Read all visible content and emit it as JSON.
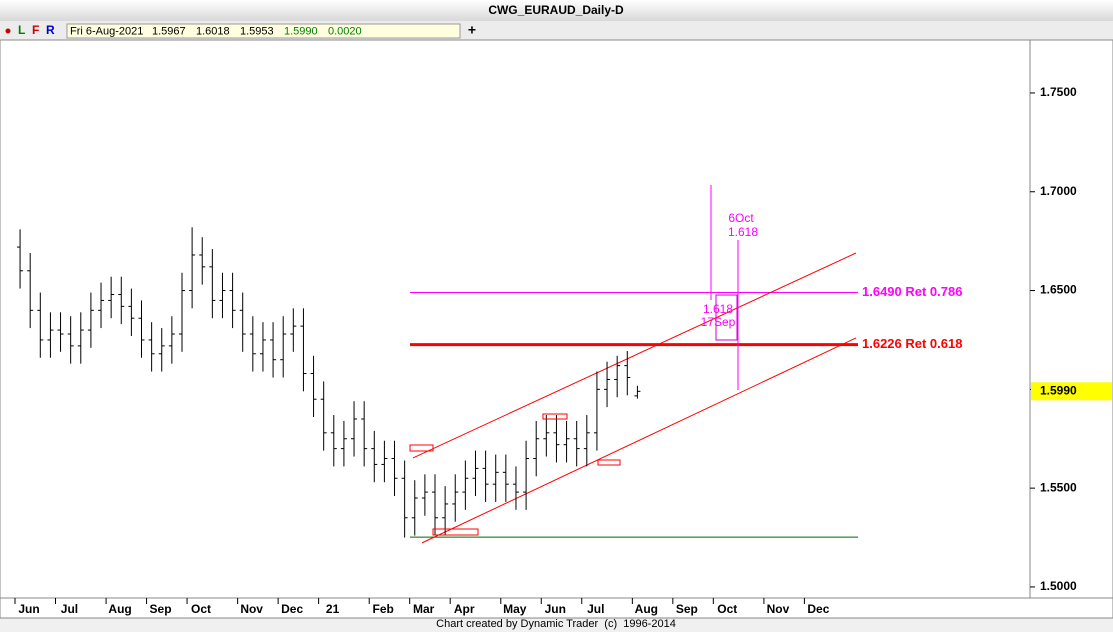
{
  "chart_data": {
    "type": "ohlc",
    "title": "CWG_EURAUD_Daily-D",
    "toolbar": {
      "buttons": [
        "L",
        "F",
        "R"
      ],
      "date": "Fri 6-Aug-2021",
      "open": "1.5967",
      "high": "1.6018",
      "low": "1.5953",
      "close": "1.5990",
      "change": "0.0020",
      "add": "+"
    },
    "footer": "Chart created by Dynamic Trader  (c)  1996-2014",
    "categories": [
      "Jun",
      null,
      null,
      null,
      "Jul",
      null,
      null,
      null,
      null,
      "Aug",
      null,
      null,
      null,
      "Sep",
      null,
      null,
      null,
      "Oct",
      null,
      null,
      null,
      null,
      "Nov",
      null,
      null,
      null,
      "Dec",
      null,
      null,
      null,
      "21",
      null,
      null,
      null,
      null,
      "Feb",
      null,
      null,
      null,
      "Mar",
      null,
      null,
      null,
      "Apr",
      null,
      null,
      null,
      null,
      "May",
      null,
      null,
      null,
      "Jun",
      null,
      null,
      null,
      "Jul",
      null,
      null,
      null,
      null,
      "Aug",
      null,
      null,
      null,
      "Sep",
      null,
      null,
      null,
      "Oct",
      null,
      null,
      null,
      null,
      "Nov",
      null,
      null,
      null,
      "Dec",
      null,
      null,
      null,
      null
    ],
    "color": "#000000",
    "open": [
      1.672,
      1.66,
      1.64,
      1.625,
      1.63,
      1.628,
      1.622,
      1.63,
      1.64,
      1.645,
      1.648,
      1.642,
      1.636,
      1.625,
      1.618,
      1.622,
      1.628,
      1.65,
      1.668,
      1.662,
      1.645,
      1.65,
      1.64,
      1.628,
      1.618,
      1.625,
      1.615,
      1.628,
      1.632,
      1.608,
      1.595,
      1.578,
      1.57,
      1.575,
      1.585,
      1.57,
      1.562,
      1.565,
      1.555,
      1.535,
      1.545,
      1.548,
      1.535,
      1.542,
      1.548,
      1.555,
      1.56,
      1.552,
      1.558,
      1.552,
      1.548,
      1.565,
      1.575,
      1.578,
      1.572,
      1.575,
      1.57,
      1.578,
      1.6,
      1.605,
      1.612,
      1.5967,
      null,
      null,
      null,
      null,
      null,
      null,
      null,
      null,
      null,
      null,
      null,
      null,
      null,
      null,
      null,
      null,
      null,
      null,
      null,
      null,
      null
    ],
    "high": [
      1.681,
      1.669,
      1.649,
      1.639,
      1.639,
      1.637,
      1.639,
      1.649,
      1.654,
      1.657,
      1.657,
      1.651,
      1.645,
      1.634,
      1.631,
      1.637,
      1.659,
      1.682,
      1.677,
      1.671,
      1.659,
      1.659,
      1.649,
      1.637,
      1.634,
      1.634,
      1.637,
      1.641,
      1.641,
      1.617,
      1.604,
      1.587,
      1.584,
      1.594,
      1.594,
      1.579,
      1.574,
      1.574,
      1.564,
      1.554,
      1.557,
      1.557,
      1.551,
      1.557,
      1.564,
      1.569,
      1.569,
      1.567,
      1.567,
      1.561,
      1.574,
      1.584,
      1.587,
      1.587,
      1.584,
      1.584,
      1.587,
      1.609,
      1.614,
      1.617,
      1.6194,
      1.6018,
      null,
      null,
      null,
      null,
      null,
      null,
      null,
      null,
      null,
      null,
      null,
      null,
      null,
      null,
      null,
      null,
      null,
      null,
      null,
      null,
      null
    ],
    "low": [
      1.651,
      1.631,
      1.616,
      1.616,
      1.619,
      1.613,
      1.613,
      1.621,
      1.631,
      1.636,
      1.633,
      1.627,
      1.616,
      1.609,
      1.609,
      1.613,
      1.619,
      1.641,
      1.653,
      1.636,
      1.636,
      1.631,
      1.619,
      1.609,
      1.609,
      1.606,
      1.606,
      1.619,
      1.599,
      1.586,
      1.569,
      1.561,
      1.561,
      1.566,
      1.561,
      1.553,
      1.553,
      1.546,
      1.525,
      1.526,
      1.536,
      1.526,
      1.526,
      1.533,
      1.539,
      1.546,
      1.543,
      1.543,
      1.543,
      1.539,
      1.539,
      1.556,
      1.566,
      1.563,
      1.563,
      1.561,
      1.561,
      1.569,
      1.591,
      1.596,
      1.597,
      1.5953,
      null,
      null,
      null,
      null,
      null,
      null,
      null,
      null,
      null,
      null,
      null,
      null,
      null,
      null,
      null,
      null,
      null,
      null,
      null,
      null,
      null
    ],
    "close": [
      1.66,
      1.64,
      1.625,
      1.63,
      1.628,
      1.622,
      1.63,
      1.64,
      1.645,
      1.648,
      1.642,
      1.636,
      1.625,
      1.618,
      1.622,
      1.628,
      1.65,
      1.668,
      1.662,
      1.645,
      1.65,
      1.64,
      1.628,
      1.618,
      1.625,
      1.615,
      1.628,
      1.632,
      1.608,
      1.595,
      1.578,
      1.57,
      1.575,
      1.585,
      1.57,
      1.562,
      1.565,
      1.555,
      1.535,
      1.545,
      1.548,
      1.535,
      1.542,
      1.548,
      1.555,
      1.56,
      1.552,
      1.558,
      1.552,
      1.548,
      1.565,
      1.575,
      1.578,
      1.572,
      1.575,
      1.57,
      1.578,
      1.6,
      1.605,
      1.612,
      1.606,
      1.599,
      null,
      null,
      null,
      null,
      null,
      null,
      null,
      null,
      null,
      null,
      null,
      null,
      null,
      null,
      null,
      null,
      null,
      null,
      null,
      null,
      null
    ],
    "ylim": [
      1.4944,
      1.7768
    ],
    "yticks": [
      {
        "value": 1.5,
        "label": "1.5000"
      },
      {
        "value": 1.55,
        "label": "1.5500"
      },
      {
        "value": 1.6,
        "label": "1.6000"
      },
      {
        "value": 1.65,
        "label": "1.6500"
      },
      {
        "value": 1.7,
        "label": "1.7000"
      },
      {
        "value": 1.75,
        "label": "1.7500"
      }
    ],
    "price_label": {
      "value": 1.599,
      "label": "1.5990"
    },
    "levels": [
      {
        "value": 1.649,
        "label": "1.6490 Ret 0.786",
        "color": "#ff00ff"
      },
      {
        "value": 1.6226,
        "label": "1.6226 Ret 0.618",
        "color": "#ff0000"
      },
      {
        "value": 1.5252,
        "color": "#006600"
      }
    ],
    "channel": [
      {
        "start": 1.5653,
        "end": 1.669
      },
      {
        "start": 1.5223,
        "end": 1.626
      }
    ],
    "time_targets": [
      {
        "ratio": "1.618",
        "date": "17Sep"
      },
      {
        "date": "6Oct",
        "ratio": "1.618"
      }
    ]
  }
}
